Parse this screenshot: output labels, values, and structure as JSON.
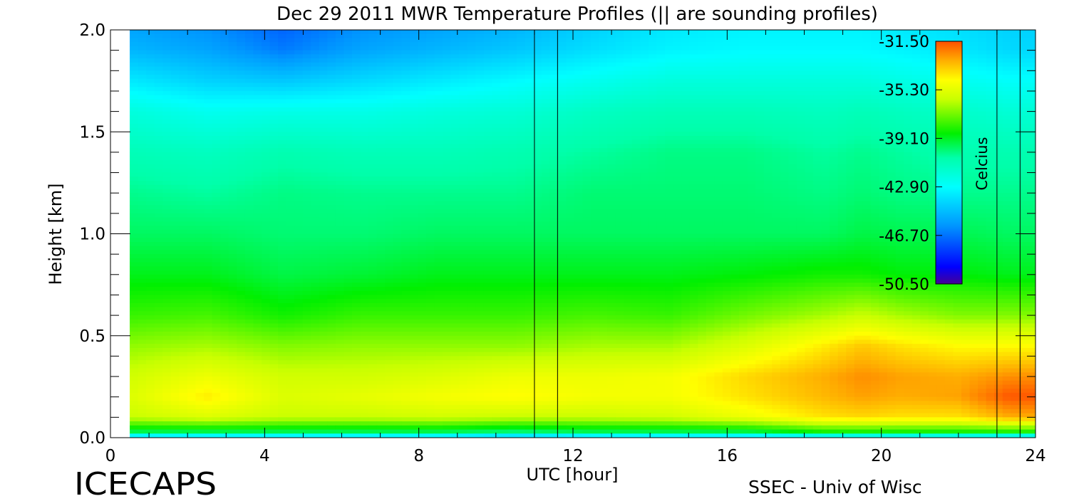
{
  "chart_data": {
    "type": "heatmap",
    "title": "Dec 29 2011 MWR Temperature Profiles (|| are sounding profiles)",
    "xlabel": "UTC [hour]",
    "ylabel": "Height [km]",
    "xlim": [
      0,
      24
    ],
    "ylim": [
      0,
      2.0
    ],
    "x_ticks": [
      "0",
      "4",
      "8",
      "12",
      "16",
      "20",
      "24"
    ],
    "y_ticks": [
      "0.0",
      "0.5",
      "1.0",
      "1.5",
      "2.0"
    ],
    "data_x_range": [
      0.5,
      24.0
    ],
    "sounding_profiles_utc": [
      11.0,
      11.6,
      23.0,
      23.6
    ],
    "colorbar": {
      "label": "Celcius",
      "min": -50.5,
      "max": -31.5,
      "ticks": [
        "-31.50",
        "-35.30",
        "-39.10",
        "-42.90",
        "-46.70",
        "-50.50"
      ]
    },
    "heights_km": [
      0.0,
      0.02,
      0.1,
      0.2,
      0.3,
      0.45,
      0.6,
      0.8,
      1.0,
      1.2,
      1.4,
      1.6,
      1.75,
      1.9,
      2.0
    ],
    "times_utc": [
      0.5,
      2.5,
      4.5,
      6.5,
      8.5,
      10.5,
      12.5,
      14.5,
      16.5,
      18.5,
      19.5,
      20.5,
      22.0,
      23.3
    ],
    "temperatures_c": [
      [
        -46.0,
        -46.0,
        -46.0,
        -46.0,
        -46.0,
        -46.5,
        -46.0,
        -46.0,
        -46.0,
        -45.5,
        -45.5,
        -45.5,
        -45.5,
        -45.5
      ],
      [
        -40.0,
        -40.0,
        -40.0,
        -40.0,
        -40.0,
        -40.5,
        -40.0,
        -40.0,
        -40.0,
        -39.0,
        -39.0,
        -39.0,
        -39.0,
        -39.0
      ],
      [
        -36.0,
        -35.5,
        -36.0,
        -36.0,
        -35.8,
        -36.0,
        -36.0,
        -35.8,
        -35.0,
        -34.0,
        -33.8,
        -34.0,
        -34.0,
        -33.0
      ],
      [
        -35.5,
        -34.2,
        -35.5,
        -35.2,
        -34.8,
        -34.5,
        -34.8,
        -34.8,
        -34.0,
        -33.2,
        -32.8,
        -33.0,
        -32.8,
        -31.6
      ],
      [
        -35.8,
        -35.0,
        -35.8,
        -35.8,
        -35.5,
        -35.0,
        -35.0,
        -34.8,
        -33.8,
        -33.0,
        -32.5,
        -32.8,
        -33.0,
        -32.5
      ],
      [
        -36.8,
        -36.5,
        -37.0,
        -36.8,
        -36.8,
        -36.8,
        -36.5,
        -36.5,
        -35.5,
        -34.2,
        -33.5,
        -34.0,
        -34.5,
        -34.5
      ],
      [
        -38.0,
        -37.8,
        -38.5,
        -38.0,
        -38.0,
        -38.0,
        -37.8,
        -38.0,
        -37.2,
        -36.5,
        -36.0,
        -36.5,
        -37.0,
        -37.0
      ],
      [
        -39.0,
        -39.0,
        -39.5,
        -39.3,
        -39.0,
        -39.0,
        -39.0,
        -39.0,
        -38.8,
        -38.5,
        -38.5,
        -38.8,
        -38.8,
        -39.0
      ],
      [
        -39.8,
        -39.8,
        -40.0,
        -40.0,
        -39.8,
        -39.8,
        -39.8,
        -39.8,
        -39.8,
        -39.8,
        -39.5,
        -39.6,
        -39.6,
        -39.8
      ],
      [
        -40.3,
        -40.5,
        -40.2,
        -40.3,
        -40.3,
        -40.3,
        -40.0,
        -40.0,
        -40.0,
        -40.2,
        -40.0,
        -40.2,
        -40.3,
        -40.3
      ],
      [
        -41.0,
        -41.2,
        -40.8,
        -41.0,
        -41.0,
        -40.8,
        -40.5,
        -40.2,
        -40.2,
        -40.5,
        -40.3,
        -40.5,
        -40.8,
        -40.8
      ],
      [
        -42.0,
        -42.5,
        -42.3,
        -42.3,
        -42.0,
        -41.8,
        -41.3,
        -41.0,
        -41.0,
        -41.2,
        -41.0,
        -41.2,
        -41.5,
        -41.8
      ],
      [
        -43.5,
        -44.2,
        -44.5,
        -44.0,
        -43.5,
        -43.0,
        -42.5,
        -42.0,
        -42.0,
        -42.0,
        -42.0,
        -42.2,
        -42.5,
        -42.8
      ],
      [
        -45.0,
        -45.5,
        -46.5,
        -45.5,
        -45.0,
        -44.5,
        -43.8,
        -43.2,
        -43.0,
        -43.0,
        -43.0,
        -43.2,
        -43.5,
        -44.0
      ],
      [
        -45.5,
        -46.0,
        -47.0,
        -46.0,
        -45.5,
        -45.0,
        -44.2,
        -43.5,
        -43.2,
        -43.2,
        -43.2,
        -43.5,
        -43.8,
        -44.2
      ]
    ]
  },
  "footer": {
    "left_logo_text": "ICECAPS",
    "right_credit": "SSEC - Univ of Wisc"
  }
}
